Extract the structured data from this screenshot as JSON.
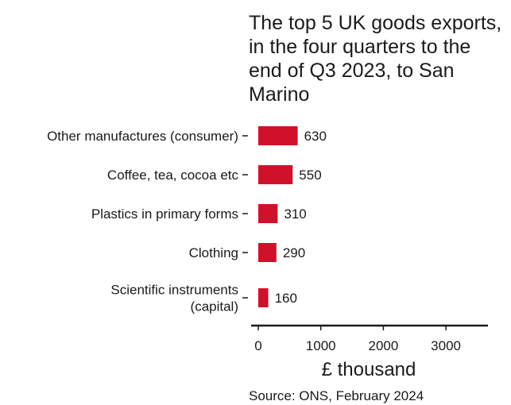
{
  "chart_data": {
    "type": "bar",
    "orientation": "horizontal",
    "title": "The top 5 UK goods exports, in the four quarters to the end of Q3 2023, to San Marino",
    "categories": [
      [
        "Other manufactures (consumer)"
      ],
      [
        "Coffee, tea, cocoa etc"
      ],
      [
        "Plastics in primary forms"
      ],
      [
        "Clothing"
      ],
      [
        "Scientific instruments",
        "(capital)"
      ]
    ],
    "values": [
      630,
      550,
      310,
      290,
      160
    ],
    "data_labels": [
      "630",
      "550",
      "310",
      "290",
      "160"
    ],
    "xlabel": "£ thousand",
    "ylabel": "",
    "xlim": [
      0,
      3700
    ],
    "x_ticks": [
      0,
      1000,
      2000,
      3000
    ],
    "x_tick_labels": [
      "0",
      "1000",
      "2000",
      "3000"
    ],
    "grid": false,
    "bar_color": "#d0112b",
    "source": "Source: ONS, February 2024"
  }
}
